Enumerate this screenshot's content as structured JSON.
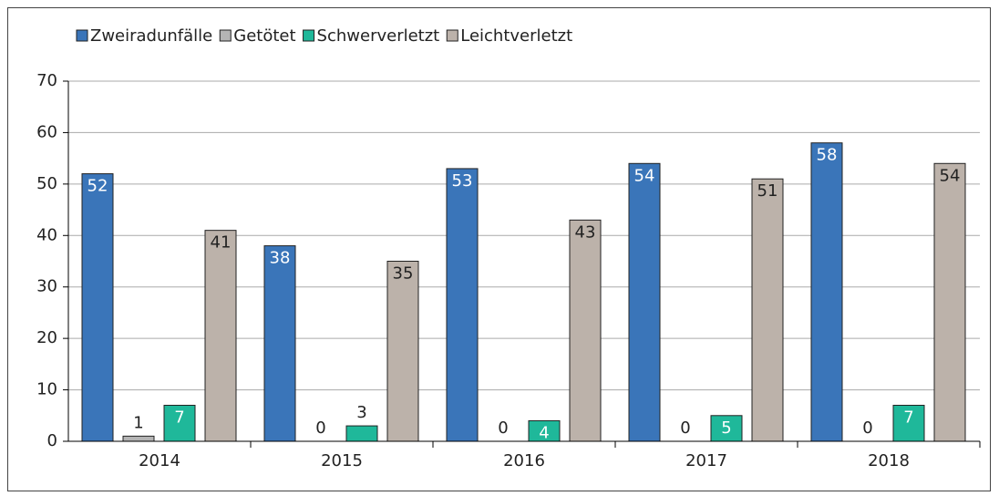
{
  "chart_data": {
    "type": "bar",
    "categories": [
      "2014",
      "2015",
      "2016",
      "2017",
      "2018"
    ],
    "series": [
      {
        "name": "Zweiradunfälle",
        "color": "#3a75b9",
        "values": [
          52,
          38,
          53,
          54,
          58
        ]
      },
      {
        "name": "Getötet",
        "color": "#b4b4b4",
        "values": [
          1,
          0,
          0,
          0,
          0
        ]
      },
      {
        "name": "Schwerverletzt",
        "color": "#1fb89a",
        "values": [
          7,
          3,
          4,
          5,
          7
        ]
      },
      {
        "name": "Leichtverletzt",
        "color": "#bcb2aa",
        "values": [
          41,
          35,
          43,
          51,
          54
        ]
      }
    ],
    "ylim": [
      0,
      70
    ],
    "yticks": [
      0,
      10,
      20,
      30,
      40,
      50,
      60,
      70
    ],
    "grid": true,
    "legend": "top"
  }
}
